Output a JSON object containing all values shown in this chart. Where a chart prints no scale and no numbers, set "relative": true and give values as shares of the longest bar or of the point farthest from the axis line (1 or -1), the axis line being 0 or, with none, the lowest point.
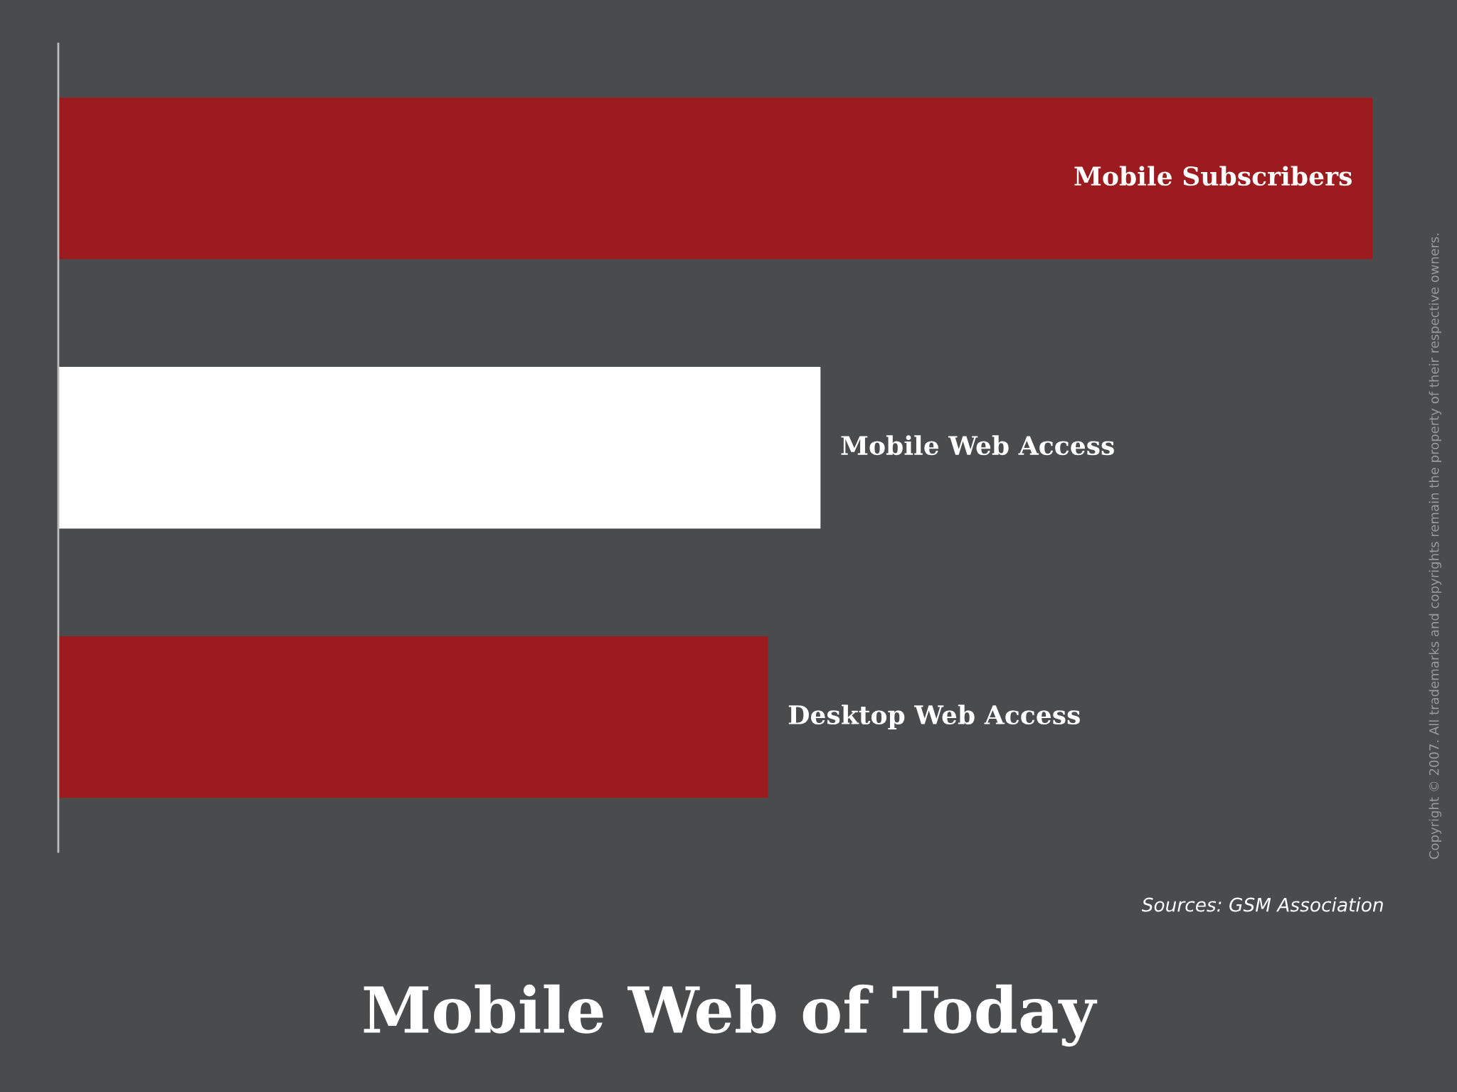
{
  "chart_data": {
    "type": "bar",
    "orientation": "horizontal",
    "relative": true,
    "title": "Mobile Web of Today",
    "categories": [
      "Mobile Subscribers",
      "Mobile Web Access",
      "Desktop Web Access"
    ],
    "values": [
      1,
      0.58,
      0.54
    ],
    "colors": [
      "#9b1b1e",
      "#ffffff",
      "#9b1b1e"
    ],
    "annotations": [
      "Sources: GSM Association",
      "Copyright © 2007. All trademarks and copyrights remain the property of their respective owners."
    ]
  }
}
